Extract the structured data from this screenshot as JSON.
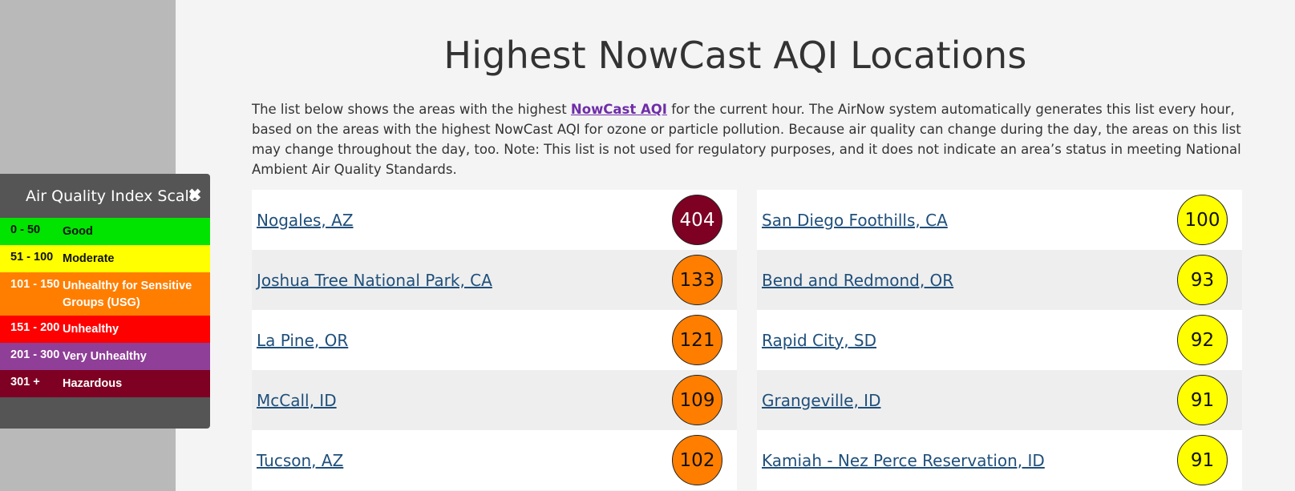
{
  "page": {
    "title": "Highest NowCast AQI Locations",
    "intro_before": "The list below shows the areas with the highest ",
    "intro_link": "NowCast AQI",
    "intro_after": " for the current hour. The AirNow system automatically generates this list every hour, based on the areas with the highest NowCast AQI for ozone or particle pollution. Because air quality can change during the day, the areas on this list may change throughout the day, too. Note: This list is not used for regulatory purposes, and it does not indicate an area’s status in meeting National Ambient Air Quality Standards."
  },
  "colors": {
    "good": "#00e400",
    "moderate": "#ffff00",
    "usg": "#ff7e00",
    "unhealthy": "#ff0000",
    "very_unhealthy": "#8f3f97",
    "hazardous": "#7e0023"
  },
  "legend": {
    "title": "Air Quality Index Scale",
    "close_icon": "close-icon",
    "rows": [
      {
        "range": "0 - 50",
        "label": "Good"
      },
      {
        "range": "51 - 100",
        "label": "Moderate"
      },
      {
        "range": "101 - 150",
        "label": "Unhealthy for Sensitive Groups (USG)"
      },
      {
        "range": "151 - 200",
        "label": "Unhealthy"
      },
      {
        "range": "201 - 300",
        "label": "Very Unhealthy"
      },
      {
        "range": "301 +",
        "label": "Hazardous"
      }
    ]
  },
  "locations_left": [
    {
      "name": "Nogales, AZ",
      "aqi": "404"
    },
    {
      "name": "Joshua Tree National Park, CA",
      "aqi": "133"
    },
    {
      "name": "La Pine, OR",
      "aqi": "121"
    },
    {
      "name": "McCall, ID",
      "aqi": "109"
    },
    {
      "name": "Tucson, AZ",
      "aqi": "102"
    }
  ],
  "locations_right": [
    {
      "name": "San Diego Foothills, CA",
      "aqi": "100"
    },
    {
      "name": "Bend and Redmond, OR",
      "aqi": "93"
    },
    {
      "name": "Rapid City, SD",
      "aqi": "92"
    },
    {
      "name": "Grangeville, ID",
      "aqi": "91"
    },
    {
      "name": "Kamiah - Nez Perce Reservation, ID",
      "aqi": "91"
    }
  ]
}
